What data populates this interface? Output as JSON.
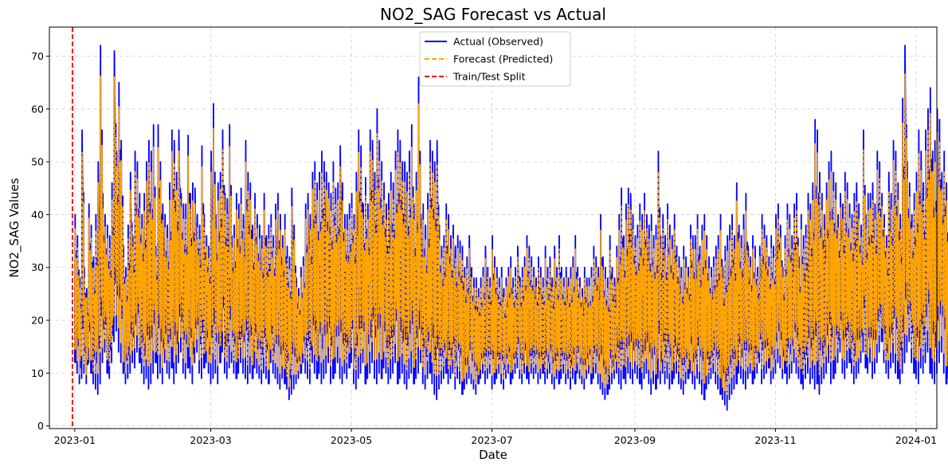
{
  "chart_data": {
    "type": "line",
    "title": "NO2_SAG Forecast vs Actual",
    "xlabel": "Date",
    "ylabel": "NO2_SAG Values",
    "xlim": [
      "2022-12-21",
      "2024-01-10"
    ],
    "ylim": [
      -0.5,
      75.5
    ],
    "x_ticks": [
      {
        "date": "2023-01-01",
        "label": "2023-01"
      },
      {
        "date": "2023-03-01",
        "label": "2023-03"
      },
      {
        "date": "2023-05-01",
        "label": "2023-05"
      },
      {
        "date": "2023-07-01",
        "label": "2023-07"
      },
      {
        "date": "2023-09-01",
        "label": "2023-09"
      },
      {
        "date": "2023-11-01",
        "label": "2023-11"
      },
      {
        "date": "2024-01-01",
        "label": "2024-01"
      }
    ],
    "y_ticks": [
      0,
      10,
      20,
      30,
      40,
      50,
      60,
      70
    ],
    "grid": true,
    "legend_position": "top-center",
    "split_date": "2022-12-31",
    "series": [
      {
        "name": "Actual (Observed)",
        "color": "#0000ff",
        "style": "solid"
      },
      {
        "name": "Forecast (Predicted)",
        "color": "#ffa500",
        "style": "dashed"
      },
      {
        "name": "Train/Test Split",
        "color": "#ff0000",
        "style": "dashed"
      }
    ],
    "daily": {
      "start": "2023-01-01",
      "actual_high": [
        40,
        36,
        28,
        56,
        30,
        26,
        42,
        38,
        32,
        40,
        50,
        72,
        44,
        40,
        38,
        36,
        46,
        71,
        52,
        65,
        54,
        34,
        30,
        38,
        48,
        36,
        52,
        50,
        44,
        40,
        44,
        50,
        54,
        52,
        57,
        34,
        57,
        50,
        42,
        40,
        38,
        46,
        56,
        54,
        48,
        56,
        44,
        42,
        42,
        55,
        44,
        46,
        45,
        40,
        38,
        53,
        40,
        36,
        34,
        52,
        61,
        40,
        46,
        48,
        56,
        44,
        43,
        57,
        36,
        38,
        44,
        42,
        45,
        40,
        54,
        48,
        46,
        38,
        44,
        40,
        38,
        36,
        44,
        36,
        38,
        40,
        36,
        42,
        44,
        40,
        36,
        40,
        34,
        32,
        45,
        38,
        28,
        26,
        30,
        32,
        42,
        44,
        40,
        48,
        50,
        46,
        48,
        52,
        50,
        48,
        46,
        44,
        50,
        45,
        46,
        53,
        46,
        40,
        40,
        42,
        44,
        40,
        48,
        56,
        53,
        42,
        47,
        42,
        56,
        54,
        48,
        60,
        54,
        50,
        46,
        42,
        44,
        48,
        46,
        52,
        56,
        54,
        50,
        50,
        48,
        52,
        57,
        42,
        48,
        66,
        40,
        42,
        38,
        44,
        54,
        52,
        50,
        54,
        38,
        34,
        36,
        42,
        40,
        36,
        38,
        34,
        36,
        35,
        34,
        30,
        32,
        36,
        30,
        28,
        28,
        26,
        28,
        30,
        34,
        30,
        28,
        36,
        32,
        30,
        28,
        30,
        26,
        28,
        30,
        32,
        28,
        30,
        34,
        28,
        30,
        32,
        36,
        34,
        32,
        30,
        28,
        32,
        30,
        28,
        34,
        30,
        32,
        28,
        34,
        30,
        36,
        30,
        28,
        30,
        28,
        30,
        32,
        36,
        30,
        28,
        26,
        30,
        28,
        28,
        30,
        34,
        32,
        30,
        40,
        32,
        30,
        28,
        36,
        30,
        28,
        34,
        40,
        45,
        36,
        42,
        45,
        44,
        40,
        36,
        38,
        42,
        40,
        44,
        40,
        38,
        40,
        36,
        38,
        52,
        36,
        40,
        36,
        42,
        38,
        36,
        40,
        34,
        32,
        30,
        34,
        32,
        30,
        38,
        36,
        36,
        40,
        34,
        38,
        40,
        36,
        32,
        30,
        32,
        34,
        36,
        40,
        30,
        34,
        36,
        38,
        40,
        36,
        46,
        38,
        36,
        40,
        44,
        34,
        32,
        36,
        34,
        30,
        34,
        40,
        38,
        36,
        32,
        36,
        34,
        40,
        42,
        38,
        30,
        36,
        42,
        40,
        36,
        42,
        44,
        32,
        40,
        36,
        38,
        44,
        42,
        46,
        58,
        56,
        48,
        44,
        40,
        46,
        50,
        52,
        48,
        46,
        40,
        44,
        42,
        48,
        46,
        42,
        40,
        44,
        46,
        42,
        38,
        56,
        40,
        44,
        44,
        46,
        42,
        52,
        50,
        44,
        40,
        36,
        48,
        44,
        54,
        52,
        46,
        40,
        62,
        72,
        50,
        46,
        40,
        44,
        48,
        56,
        52,
        46,
        56,
        60,
        64,
        52,
        54,
        60,
        58,
        48,
        52,
        46,
        44,
        40,
        38,
        46,
        42
      ],
      "actual_low": [
        12,
        10,
        8,
        9,
        10,
        8,
        12,
        10,
        8,
        7,
        6,
        8,
        12,
        14,
        10,
        9,
        12,
        16,
        18,
        14,
        12,
        10,
        8,
        9,
        10,
        12,
        11,
        14,
        12,
        10,
        8,
        9,
        7,
        8,
        10,
        12,
        9,
        10,
        8,
        12,
        10,
        9,
        11,
        8,
        10,
        12,
        14,
        10,
        9,
        11,
        10,
        8,
        12,
        14,
        10,
        9,
        11,
        12,
        10,
        8,
        9,
        10,
        8,
        12,
        14,
        10,
        9,
        11,
        12,
        10,
        9,
        10,
        12,
        10,
        9,
        8,
        10,
        9,
        11,
        10,
        9,
        8,
        10,
        9,
        8,
        12,
        10,
        9,
        8,
        7,
        9,
        8,
        7,
        5,
        6,
        7,
        8,
        9,
        10,
        12,
        10,
        9,
        8,
        12,
        10,
        9,
        10,
        8,
        9,
        10,
        12,
        8,
        9,
        10,
        12,
        9,
        8,
        10,
        9,
        11,
        12,
        8,
        7,
        9,
        10,
        12,
        8,
        9,
        10,
        12,
        9,
        8,
        10,
        9,
        11,
        10,
        8,
        9,
        10,
        12,
        8,
        9,
        10,
        8,
        7,
        9,
        10,
        8,
        9,
        10,
        12,
        8,
        7,
        9,
        10,
        8,
        6,
        5,
        7,
        8,
        9,
        10,
        8,
        9,
        10,
        7,
        9,
        8,
        6,
        7,
        8,
        9,
        8,
        7,
        6,
        8,
        9,
        10,
        8,
        9,
        10,
        7,
        8,
        9,
        10,
        8,
        7,
        9,
        10,
        8,
        9,
        10,
        11,
        9,
        8,
        10,
        9,
        8,
        10,
        9,
        10,
        8,
        9,
        10,
        8,
        9,
        10,
        8,
        7,
        9,
        8,
        9,
        10,
        8,
        9,
        7,
        9,
        8,
        10,
        9,
        8,
        7,
        9,
        10,
        8,
        9,
        10,
        8,
        7,
        6,
        5,
        6,
        7,
        8,
        9,
        10,
        8,
        7,
        9,
        8,
        10,
        9,
        8,
        10,
        9,
        8,
        7,
        9,
        10,
        8,
        6,
        8,
        7,
        9,
        8,
        10,
        8,
        9,
        7,
        8,
        9,
        10,
        8,
        7,
        6,
        8,
        9,
        10,
        8,
        7,
        9,
        8,
        6,
        5,
        7,
        8,
        9,
        10,
        8,
        7,
        6,
        5,
        4,
        3,
        5,
        6,
        7,
        8,
        10,
        9,
        8,
        7,
        9,
        10,
        8,
        9,
        10,
        12,
        8,
        9,
        10,
        11,
        8,
        9,
        10,
        12,
        11,
        9,
        10,
        8,
        9,
        10,
        12,
        10,
        9,
        8,
        7,
        9,
        10,
        8,
        9,
        7,
        8,
        6,
        8,
        9,
        10,
        12,
        8,
        9,
        10,
        12,
        14,
        10,
        9,
        11,
        12,
        10,
        8,
        9,
        10,
        12,
        14,
        11,
        10,
        12,
        9,
        10,
        12,
        14,
        16,
        12,
        10,
        9,
        11,
        12,
        10,
        9,
        8,
        10,
        12,
        14,
        16,
        12,
        10,
        9,
        8,
        11,
        10,
        12,
        14,
        10,
        9,
        8,
        10,
        12,
        14,
        10,
        8,
        9,
        12,
        10,
        8,
        6,
        5,
        8,
        10,
        12,
        14,
        18,
        16,
        14,
        12,
        10,
        9,
        12,
        14,
        20,
        18,
        16
      ]
    }
  }
}
